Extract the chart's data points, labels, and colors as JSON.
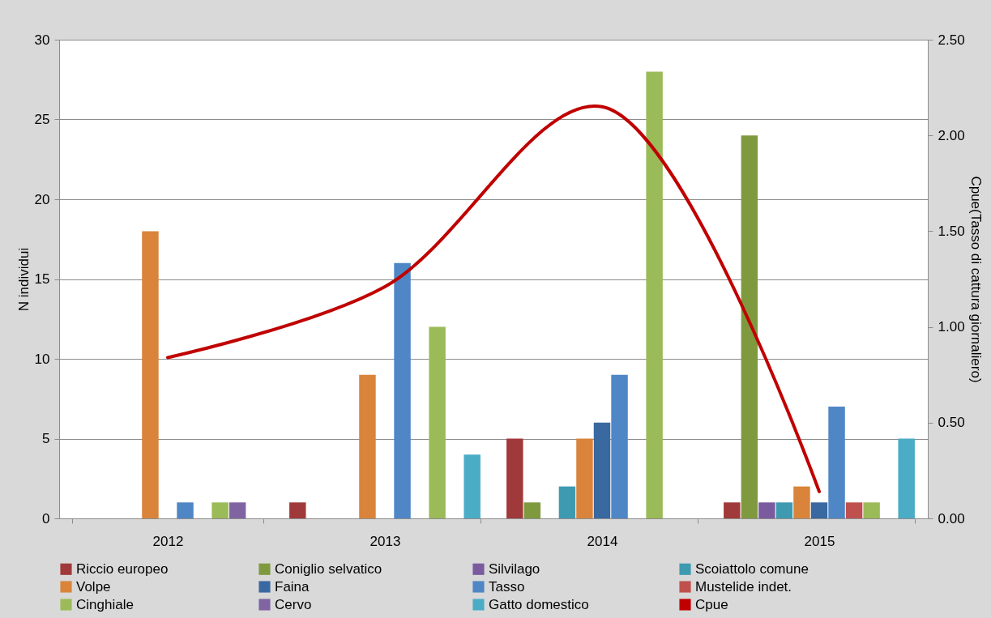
{
  "chart_data": {
    "type": "bar",
    "ylabel": "N individui",
    "y2label": "Cpue(Tasso di cattura giornaliero)",
    "categories": [
      "2012",
      "2013",
      "2014",
      "2015"
    ],
    "series": [
      {
        "name": "Riccio europeo",
        "color": "#a0393a",
        "values": [
          0,
          1,
          5,
          1
        ]
      },
      {
        "name": "Coniglio selvatico",
        "color": "#7f9a3e",
        "values": [
          0,
          0,
          1,
          24
        ]
      },
      {
        "name": "Silvilago",
        "color": "#7a5b9e",
        "values": [
          0,
          0,
          0,
          1
        ]
      },
      {
        "name": "Scoiattolo comune",
        "color": "#3e9ab0",
        "values": [
          0,
          0,
          2,
          1
        ]
      },
      {
        "name": "Volpe",
        "color": "#d9843a",
        "values": [
          18,
          9,
          5,
          2
        ]
      },
      {
        "name": "Faina",
        "color": "#3a68a0",
        "values": [
          0,
          0,
          6,
          1
        ]
      },
      {
        "name": "Tasso",
        "color": "#4f86c6",
        "values": [
          1,
          16,
          9,
          7
        ]
      },
      {
        "name": "Mustelide indet.",
        "color": "#c0504d",
        "values": [
          0,
          0,
          0,
          1
        ]
      },
      {
        "name": "Cinghiale",
        "color": "#9bbb59",
        "values": [
          1,
          12,
          28,
          1
        ]
      },
      {
        "name": "Cervo",
        "color": "#8064a2",
        "values": [
          1,
          0,
          0,
          0
        ]
      },
      {
        "name": "Gatto domestico",
        "color": "#4bacc6",
        "values": [
          0,
          4,
          0,
          5
        ]
      },
      {
        "name": "Cpue",
        "type": "line",
        "axis": "y2",
        "color": "#c00000",
        "values": [
          0.84,
          1.21,
          2.15,
          0.14
        ]
      }
    ],
    "ylim": [
      0,
      30
    ],
    "yticks": [
      0,
      5,
      10,
      15,
      20,
      25,
      30
    ],
    "y2lim": [
      0,
      2.5
    ],
    "y2ticks": [
      {
        "value": 0,
        "label": "0.00"
      },
      {
        "value": 0.5,
        "label": "0.50"
      },
      {
        "value": 1,
        "label": "1.00"
      },
      {
        "value": 1.5,
        "label": "1.50"
      },
      {
        "value": 2,
        "label": "2.00"
      },
      {
        "value": 2.5,
        "label": "2.50"
      }
    ],
    "grid": "y",
    "legend": "bottom"
  }
}
